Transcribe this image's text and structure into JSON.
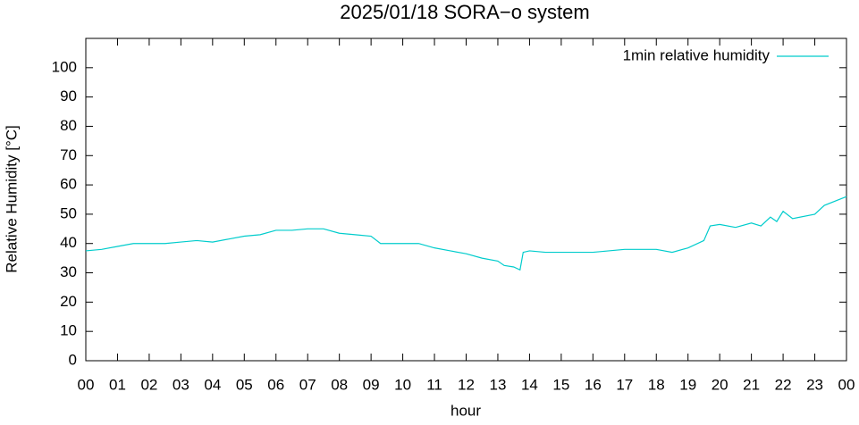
{
  "chart_data": {
    "type": "line",
    "title": "2025/01/18 SORA−o system",
    "xlabel": "hour",
    "ylabel": "Relative Humidity [°C]",
    "xlim": [
      0,
      24
    ],
    "ylim": [
      0,
      110
    ],
    "xticks": [
      {
        "value": 0,
        "label": "00"
      },
      {
        "value": 1,
        "label": "01"
      },
      {
        "value": 2,
        "label": "02"
      },
      {
        "value": 3,
        "label": "03"
      },
      {
        "value": 4,
        "label": "04"
      },
      {
        "value": 5,
        "label": "05"
      },
      {
        "value": 6,
        "label": "06"
      },
      {
        "value": 7,
        "label": "07"
      },
      {
        "value": 8,
        "label": "08"
      },
      {
        "value": 9,
        "label": "09"
      },
      {
        "value": 10,
        "label": "10"
      },
      {
        "value": 11,
        "label": "11"
      },
      {
        "value": 12,
        "label": "12"
      },
      {
        "value": 13,
        "label": "13"
      },
      {
        "value": 14,
        "label": "14"
      },
      {
        "value": 15,
        "label": "15"
      },
      {
        "value": 16,
        "label": "16"
      },
      {
        "value": 17,
        "label": "17"
      },
      {
        "value": 18,
        "label": "18"
      },
      {
        "value": 19,
        "label": "19"
      },
      {
        "value": 20,
        "label": "20"
      },
      {
        "value": 21,
        "label": "21"
      },
      {
        "value": 22,
        "label": "22"
      },
      {
        "value": 23,
        "label": "23"
      },
      {
        "value": 24,
        "label": "00"
      }
    ],
    "yticks": [
      0,
      10,
      20,
      30,
      40,
      50,
      60,
      70,
      80,
      90,
      100
    ],
    "legend": "top-right",
    "x": [
      0,
      0.5,
      1,
      1.5,
      2,
      2.5,
      3,
      3.5,
      4,
      4.5,
      5,
      5.5,
      6,
      6.5,
      7,
      7.5,
      8,
      8.5,
      9,
      9.3,
      10,
      10.5,
      11,
      11.5,
      12,
      12.5,
      13,
      13.2,
      13.5,
      13.7,
      13.8,
      14,
      14.5,
      15,
      15.5,
      16,
      16.5,
      17,
      17.5,
      18,
      18.5,
      19,
      19.5,
      19.7,
      20,
      20.5,
      21,
      21.3,
      21.6,
      21.8,
      22,
      22.3,
      23,
      23.3,
      24
    ],
    "series": [
      {
        "name": "1min relative humidity",
        "color": "#00cccc",
        "values": [
          37.5,
          38,
          39,
          40,
          40,
          40,
          40.5,
          41,
          40.5,
          41.5,
          42.5,
          43,
          44.5,
          44.5,
          45,
          45,
          43.5,
          43,
          42.5,
          40,
          40,
          40,
          38.5,
          37.5,
          36.5,
          35,
          34,
          32.5,
          32,
          31,
          37,
          37.5,
          37,
          37,
          37,
          37,
          37.5,
          38,
          38,
          38,
          37,
          38.5,
          41,
          46,
          46.5,
          45.5,
          47,
          46,
          49,
          47.5,
          51,
          48.5,
          50,
          53,
          56
        ]
      }
    ]
  }
}
